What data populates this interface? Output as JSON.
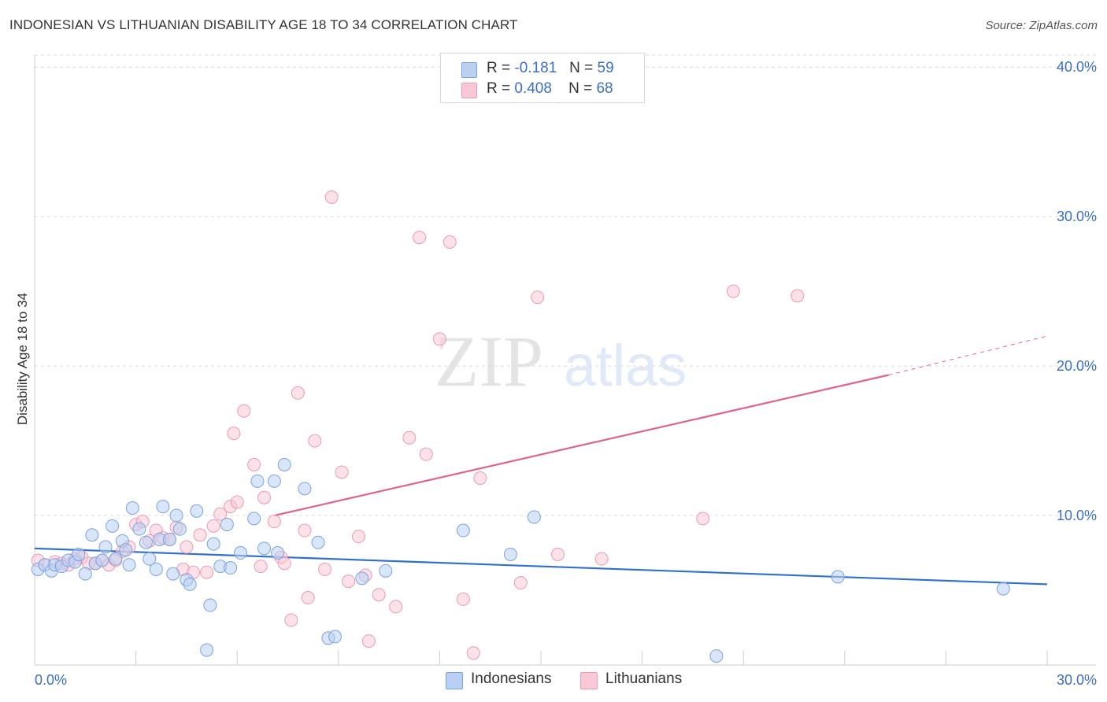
{
  "title": "INDONESIAN VS LITHUANIAN DISABILITY AGE 18 TO 34 CORRELATION CHART",
  "source": "Source: ZipAtlas.com",
  "watermark": {
    "zip": "ZIP",
    "atlas": "atlas"
  },
  "legend": {
    "r_label": "R =",
    "n_label": "N =",
    "indonesians": {
      "r": "-0.181",
      "n": "59"
    },
    "lithuanians": {
      "r": "0.408",
      "n": "68"
    }
  },
  "bottom_legend": {
    "indonesians": "Indonesians",
    "lithuanians": "Lithuanians"
  },
  "chart_data": {
    "type": "scatter",
    "title": "INDONESIAN VS LITHUANIAN DISABILITY AGE 18 TO 34 CORRELATION CHART",
    "xlabel": "",
    "ylabel": "Disability Age 18 to 34",
    "xlim": [
      0,
      30
    ],
    "ylim": [
      0,
      40.8
    ],
    "x_tick_labels": [
      {
        "value": 0,
        "label": "0.0%"
      },
      {
        "value": 30,
        "label": "30.0%"
      }
    ],
    "y_tick_labels": [
      {
        "value": 10,
        "label": "10.0%"
      },
      {
        "value": 20,
        "label": "20.0%"
      },
      {
        "value": 30,
        "label": "30.0%"
      },
      {
        "value": 40,
        "label": "40.0%"
      }
    ],
    "x_minor_ticks": [
      3,
      6,
      9,
      12,
      15,
      18,
      21,
      24,
      27,
      30
    ],
    "grid": "horizontal-dashed",
    "colors": {
      "indonesians_fill": "#b9d0f2",
      "indonesians_stroke": "#7aa3dd",
      "indonesians_line": "#2f6fcf",
      "lithuanians_fill": "#f8c8d6",
      "lithuanians_stroke": "#eb9ab3",
      "lithuanians_line": "#e0638e",
      "tick_label": "#3a6fc4"
    },
    "series": [
      {
        "name": "Indonesians",
        "points": [
          [
            0.1,
            6.4
          ],
          [
            0.3,
            6.7
          ],
          [
            0.5,
            6.3
          ],
          [
            0.6,
            6.7
          ],
          [
            0.8,
            6.6
          ],
          [
            1.0,
            7.0
          ],
          [
            1.2,
            6.9
          ],
          [
            1.3,
            7.4
          ],
          [
            1.5,
            6.1
          ],
          [
            1.7,
            8.7
          ],
          [
            1.8,
            6.8
          ],
          [
            2.0,
            7.0
          ],
          [
            2.1,
            7.9
          ],
          [
            2.3,
            9.3
          ],
          [
            2.4,
            7.1
          ],
          [
            2.6,
            8.3
          ],
          [
            2.7,
            7.7
          ],
          [
            2.8,
            6.7
          ],
          [
            2.9,
            10.5
          ],
          [
            3.1,
            9.1
          ],
          [
            3.3,
            8.2
          ],
          [
            3.4,
            7.1
          ],
          [
            3.6,
            6.4
          ],
          [
            3.7,
            8.4
          ],
          [
            3.8,
            10.6
          ],
          [
            4.0,
            8.4
          ],
          [
            4.1,
            6.1
          ],
          [
            4.2,
            10.0
          ],
          [
            4.3,
            9.1
          ],
          [
            4.5,
            5.7
          ],
          [
            4.6,
            5.4
          ],
          [
            4.8,
            10.3
          ],
          [
            5.1,
            1.0
          ],
          [
            5.2,
            4.0
          ],
          [
            5.3,
            8.1
          ],
          [
            5.5,
            6.6
          ],
          [
            5.7,
            9.4
          ],
          [
            5.8,
            6.5
          ],
          [
            6.1,
            7.5
          ],
          [
            6.5,
            9.8
          ],
          [
            6.6,
            12.3
          ],
          [
            6.8,
            7.8
          ],
          [
            7.1,
            12.3
          ],
          [
            7.2,
            7.5
          ],
          [
            7.4,
            13.4
          ],
          [
            8.0,
            11.8
          ],
          [
            8.4,
            8.2
          ],
          [
            8.7,
            1.8
          ],
          [
            8.9,
            1.9
          ],
          [
            9.7,
            5.8
          ],
          [
            10.4,
            6.3
          ],
          [
            12.7,
            9.0
          ],
          [
            14.1,
            7.4
          ],
          [
            14.8,
            9.9
          ],
          [
            20.2,
            0.6
          ],
          [
            23.8,
            5.9
          ],
          [
            28.7,
            5.1
          ]
        ]
      },
      {
        "name": "Lithuanians",
        "points": [
          [
            0.1,
            7.0
          ],
          [
            0.3,
            6.7
          ],
          [
            0.6,
            6.9
          ],
          [
            0.8,
            6.8
          ],
          [
            1.0,
            6.7
          ],
          [
            1.2,
            7.1
          ],
          [
            1.4,
            7.2
          ],
          [
            1.6,
            6.8
          ],
          [
            1.8,
            6.8
          ],
          [
            2.0,
            7.0
          ],
          [
            2.2,
            6.7
          ],
          [
            2.4,
            7.0
          ],
          [
            2.6,
            7.6
          ],
          [
            2.8,
            7.9
          ],
          [
            3.0,
            9.4
          ],
          [
            3.2,
            9.6
          ],
          [
            3.4,
            8.3
          ],
          [
            3.6,
            9.0
          ],
          [
            3.8,
            8.5
          ],
          [
            4.0,
            8.4
          ],
          [
            4.2,
            9.2
          ],
          [
            4.4,
            6.4
          ],
          [
            4.5,
            7.9
          ],
          [
            4.7,
            6.2
          ],
          [
            4.9,
            8.7
          ],
          [
            5.1,
            6.2
          ],
          [
            5.3,
            9.3
          ],
          [
            5.5,
            10.1
          ],
          [
            5.8,
            10.6
          ],
          [
            5.9,
            15.5
          ],
          [
            6.0,
            10.9
          ],
          [
            6.2,
            17.0
          ],
          [
            6.5,
            13.4
          ],
          [
            6.7,
            6.6
          ],
          [
            6.8,
            11.2
          ],
          [
            7.1,
            9.6
          ],
          [
            7.3,
            7.2
          ],
          [
            7.4,
            6.8
          ],
          [
            7.6,
            3.0
          ],
          [
            7.8,
            18.2
          ],
          [
            8.0,
            9.0
          ],
          [
            8.1,
            4.5
          ],
          [
            8.3,
            15.0
          ],
          [
            8.6,
            6.4
          ],
          [
            8.8,
            31.3
          ],
          [
            9.1,
            12.9
          ],
          [
            9.3,
            5.6
          ],
          [
            9.6,
            8.6
          ],
          [
            9.8,
            6.0
          ],
          [
            9.9,
            1.6
          ],
          [
            10.2,
            4.7
          ],
          [
            10.7,
            3.9
          ],
          [
            11.1,
            15.2
          ],
          [
            11.4,
            28.6
          ],
          [
            11.6,
            14.1
          ],
          [
            12.0,
            21.8
          ],
          [
            12.3,
            28.3
          ],
          [
            12.7,
            4.4
          ],
          [
            13.0,
            0.8
          ],
          [
            13.2,
            12.5
          ],
          [
            14.4,
            5.5
          ],
          [
            14.9,
            24.6
          ],
          [
            15.5,
            7.4
          ],
          [
            16.8,
            7.1
          ],
          [
            19.8,
            9.8
          ],
          [
            20.7,
            25.0
          ],
          [
            22.6,
            24.7
          ]
        ]
      }
    ],
    "trend_lines": [
      {
        "series": "Indonesians",
        "x": [
          0,
          30
        ],
        "y": [
          7.8,
          5.4
        ]
      },
      {
        "series": "Lithuanians",
        "x": [
          7.1,
          25.3
        ],
        "y": [
          10.0,
          19.4
        ],
        "dashed_extension": {
          "x": [
            25.3,
            30
          ],
          "y": [
            19.4,
            22.0
          ]
        }
      }
    ]
  }
}
